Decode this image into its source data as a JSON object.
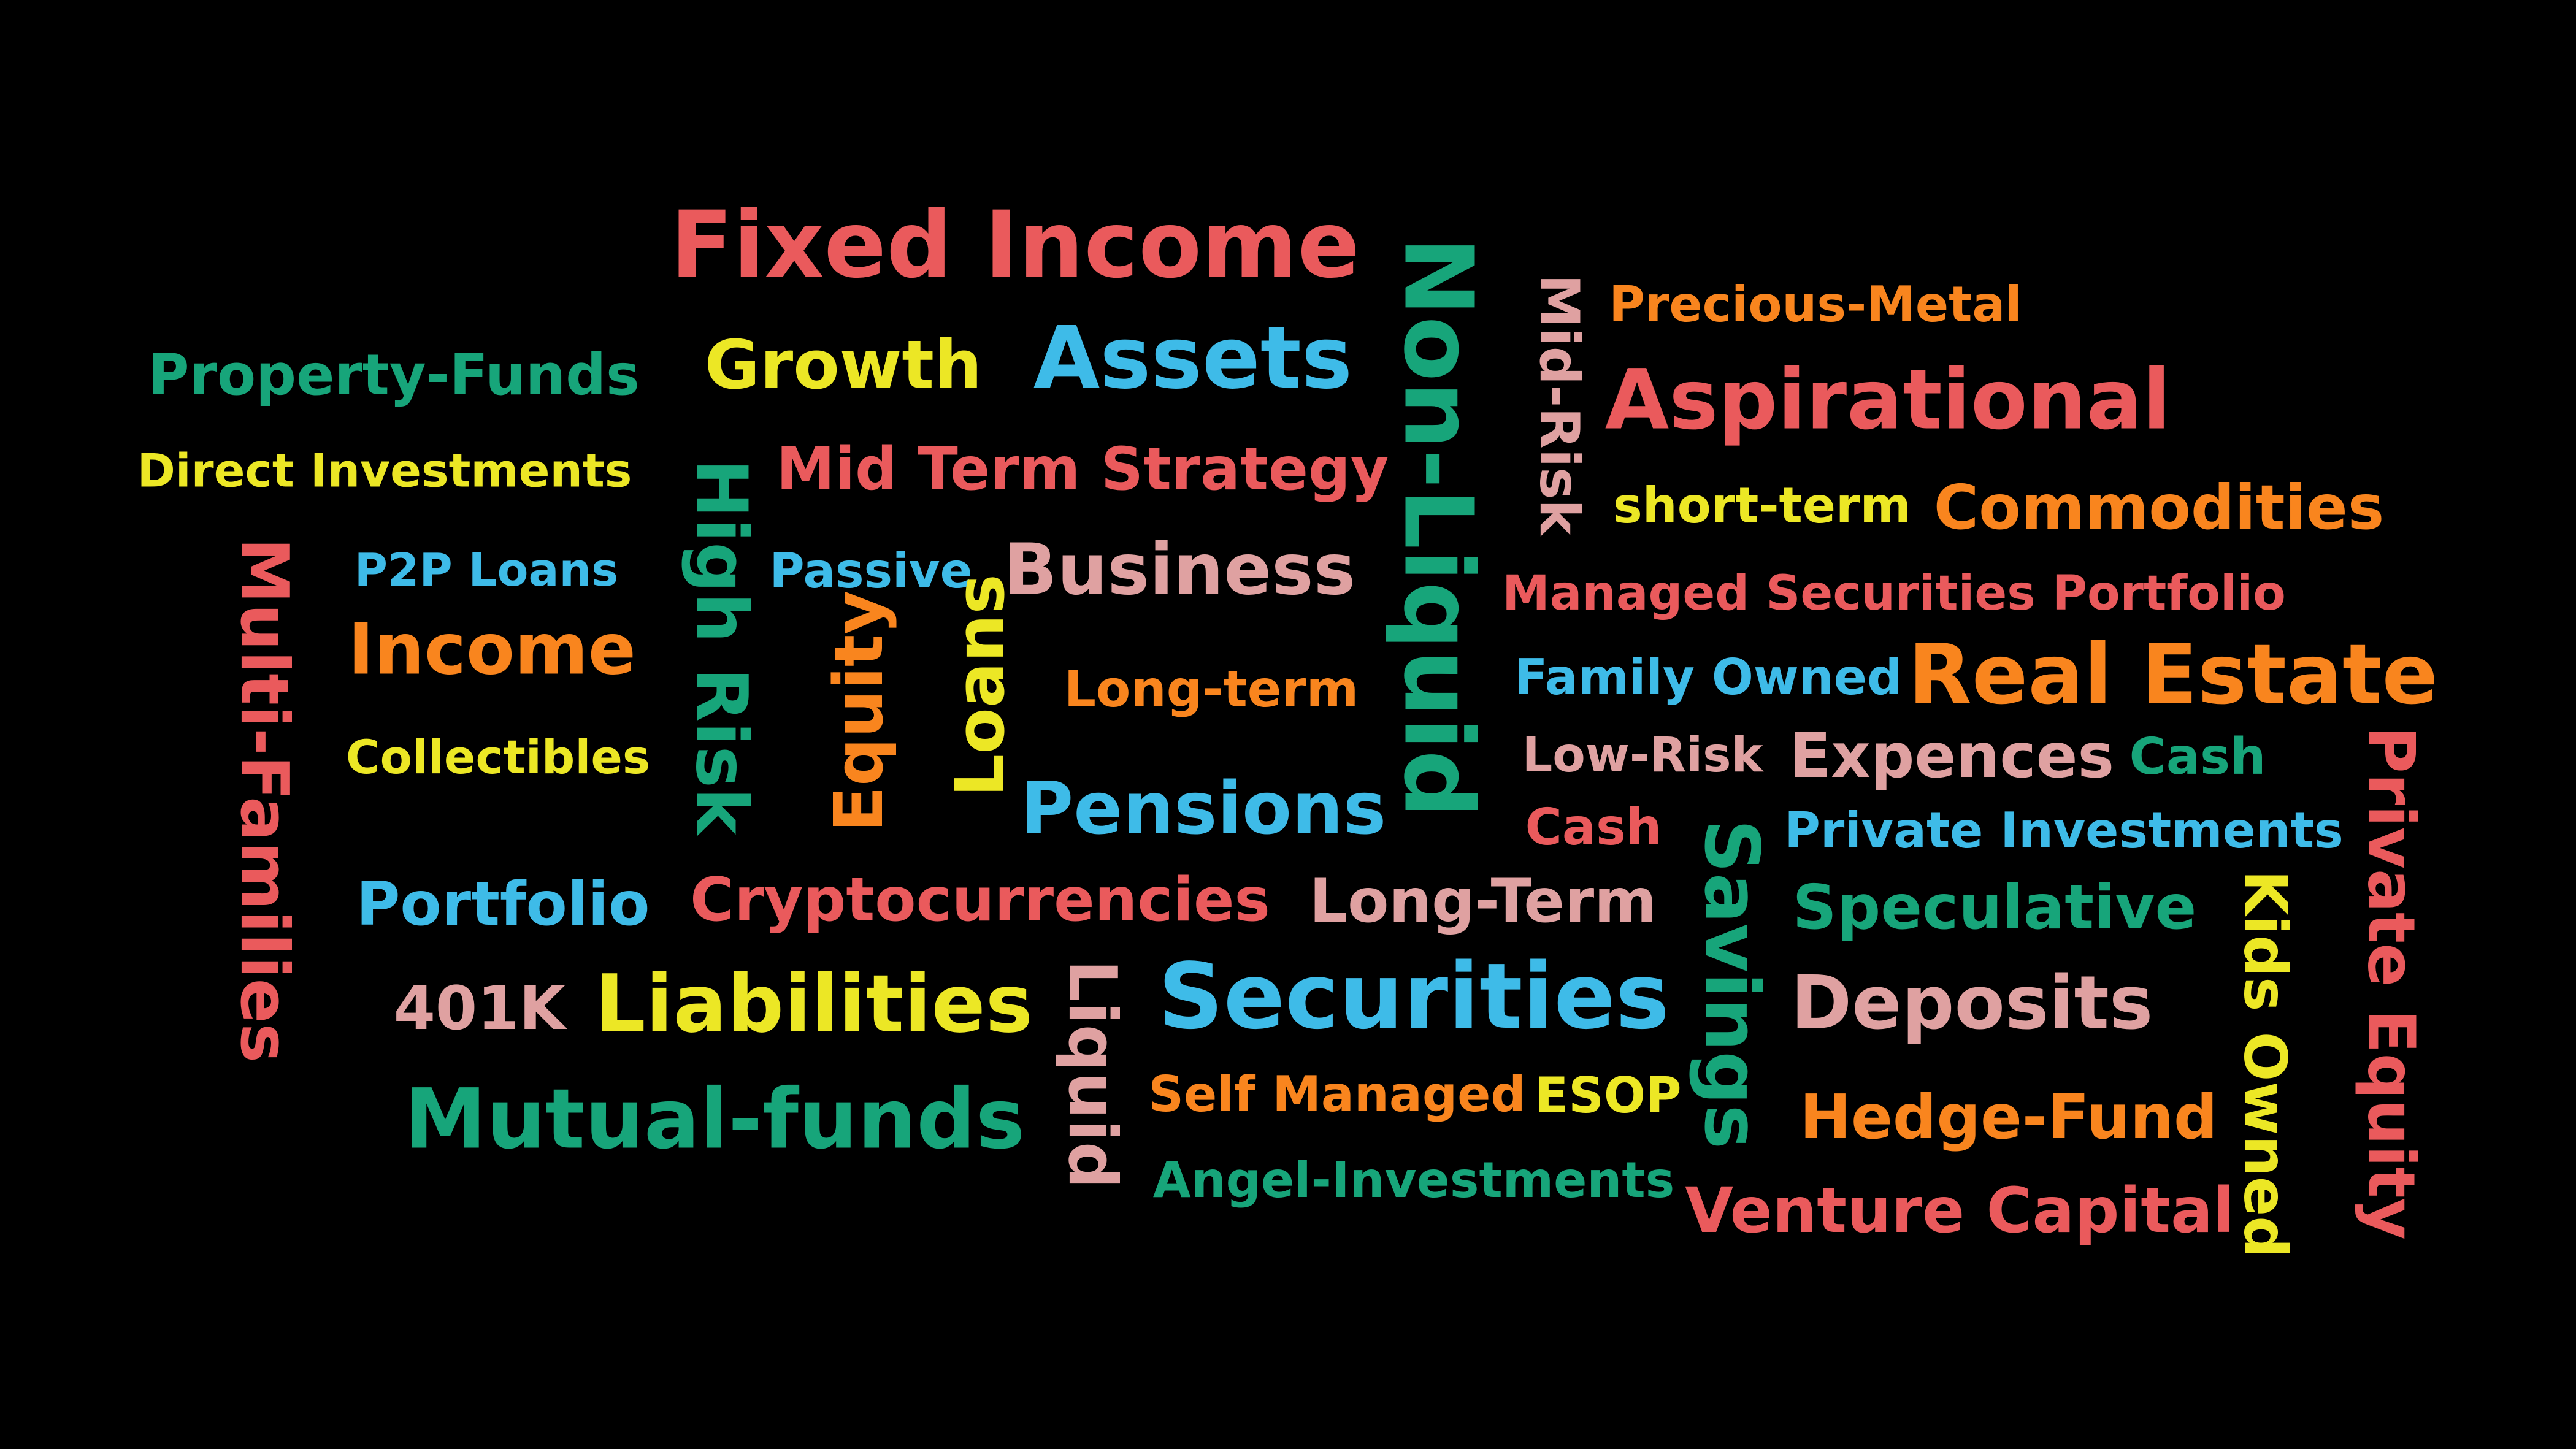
{
  "colors": {
    "background": "#000000",
    "red": "#ea5a5c",
    "green": "#17a57a",
    "yellow": "#ece725",
    "blue": "#3ebbe8",
    "orange": "#f9851e",
    "pink": "#dfa1a1"
  },
  "words": {
    "fixed_income": "Fixed Income",
    "growth": "Growth",
    "assets": "Assets",
    "property_funds": "Property-Funds",
    "direct_investments": "Direct Investments",
    "mid_term_strategy": "Mid Term Strategy",
    "high_risk": "High Risk",
    "p2p_loans": "P2P Loans",
    "passive": "Passive",
    "business": "Business",
    "multi_families": "Multi-Families",
    "income": "Income",
    "long_term_lower": "Long-term",
    "equity": "Equity",
    "loans": "Loans",
    "collectibles": "Collectibles",
    "pensions": "Pensions",
    "non_liquid": "Non-Liquid",
    "mid_risk": "Mid-Risk",
    "precious_metal": "Precious-Metal",
    "aspirational": "Aspirational",
    "short_term": "short-term",
    "commodities": "Commodities",
    "managed_securities_portfolio": "Managed Securities Portfolio",
    "family_owned": "Family Owned",
    "real_estate": "Real Estate",
    "low_risk": "Low-Risk",
    "expences": "Expences",
    "cash_green": "Cash",
    "private_equity": "Private Equity",
    "cash_red": "Cash",
    "savings": "Savings",
    "private_investments": "Private Investments",
    "portfolio": "Portfolio",
    "cryptocurrencies": "Cryptocurrencies",
    "long_term_upper": "Long-Term",
    "speculative": "Speculative",
    "kids_owned": "Kids Owned",
    "k401": "401K",
    "liabilities": "Liabilities",
    "liquid": "Liquid",
    "securities": "Securities",
    "deposits": "Deposits",
    "mutual_funds": "Mutual-funds",
    "self_managed": "Self Managed",
    "esop": "ESOP",
    "hedge_fund": "Hedge-Fund",
    "angel_investments": "Angel-Investments",
    "venture_capital": "Venture Capital"
  }
}
